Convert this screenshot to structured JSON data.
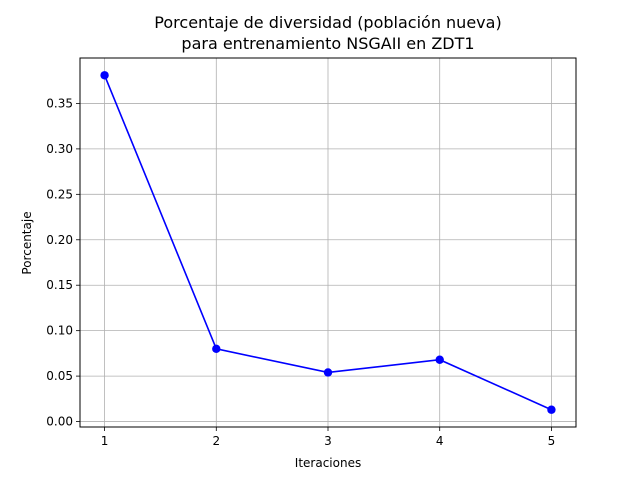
{
  "chart_data": {
    "type": "line",
    "title": [
      "Porcentaje de diversidad (población nueva)",
      "para entrenamiento NSGAII en ZDT1"
    ],
    "xlabel": "Iteraciones",
    "ylabel": "Porcentaje",
    "x": [
      1,
      2,
      3,
      4,
      5
    ],
    "series": [
      {
        "values": [
          0.381,
          0.08,
          0.054,
          0.068,
          0.013
        ],
        "color": "#0000ff",
        "marker": "circle"
      }
    ],
    "xticks": [
      "1",
      "2",
      "3",
      "4",
      "5"
    ],
    "yticks": [
      "0.00",
      "0.05",
      "0.10",
      "0.15",
      "0.20",
      "0.25",
      "0.30",
      "0.35"
    ],
    "xlim": [
      0.78,
      5.22
    ],
    "ylim": [
      -0.006,
      0.4
    ],
    "grid": true
  }
}
